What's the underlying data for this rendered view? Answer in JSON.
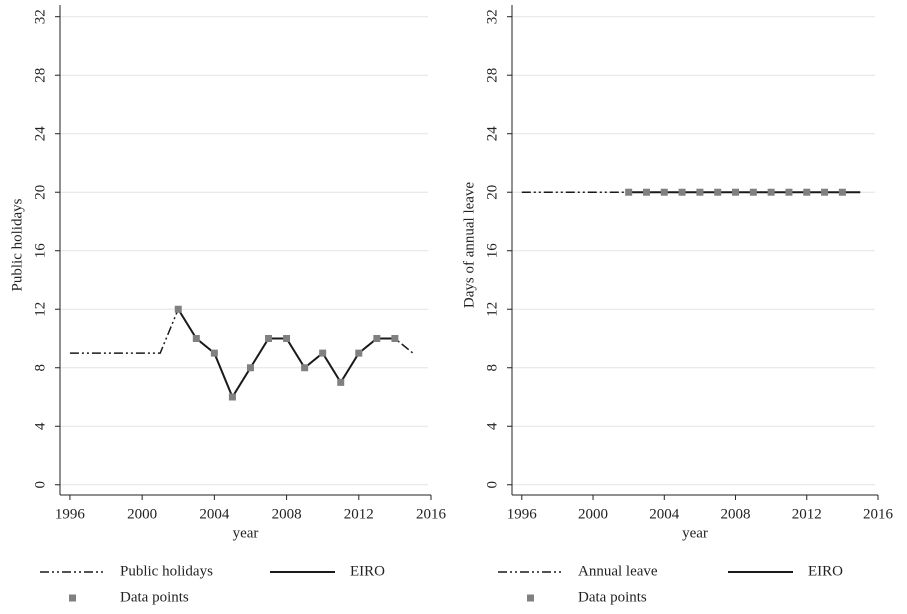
{
  "chart_data": [
    {
      "type": "line",
      "xlabel": "year",
      "ylabel": "Public holidays",
      "x": [
        1996,
        1997,
        1998,
        1999,
        2000,
        2001,
        2002,
        2003,
        2004,
        2005,
        2006,
        2007,
        2008,
        2009,
        2010,
        2011,
        2012,
        2013,
        2014,
        2015
      ],
      "xlim": [
        1995.45,
        2016
      ],
      "xticks": [
        1996,
        2000,
        2004,
        2008,
        2012,
        2016
      ],
      "ylim": [
        -0.7,
        32.8
      ],
      "yticks": [
        0,
        4,
        8,
        12,
        16,
        20,
        24,
        28,
        32
      ],
      "grid": true,
      "series": [
        {
          "name": "Public holidays",
          "color": "#1a1a1a",
          "style": "dash-dot",
          "values": [
            9,
            9,
            9,
            9,
            9,
            9,
            12,
            10,
            9,
            6,
            8,
            10,
            10,
            8,
            9,
            7,
            9,
            10,
            10,
            9
          ]
        },
        {
          "name": "EIRO",
          "color": "#1a1a1a",
          "style": "solid",
          "values": [
            null,
            null,
            null,
            null,
            null,
            null,
            12,
            10,
            9,
            6,
            8,
            10,
            10,
            8,
            9,
            7,
            9,
            10,
            10,
            null
          ]
        },
        {
          "name": "Data points",
          "color": "#808080",
          "style": "markers",
          "values": [
            null,
            null,
            null,
            null,
            null,
            null,
            12,
            10,
            9,
            6,
            8,
            10,
            10,
            8,
            9,
            7,
            9,
            10,
            10,
            null
          ]
        }
      ]
    },
    {
      "type": "line",
      "xlabel": "year",
      "ylabel": "Days of annual leave",
      "x": [
        1996,
        1997,
        1998,
        1999,
        2000,
        2001,
        2002,
        2003,
        2004,
        2005,
        2006,
        2007,
        2008,
        2009,
        2010,
        2011,
        2012,
        2013,
        2014,
        2015
      ],
      "xlim": [
        1995.45,
        2016
      ],
      "xticks": [
        1996,
        2000,
        2004,
        2008,
        2012,
        2016
      ],
      "ylim": [
        -0.7,
        32.8
      ],
      "yticks": [
        0,
        4,
        8,
        12,
        16,
        20,
        24,
        28,
        32
      ],
      "grid": true,
      "series": [
        {
          "name": "Annual leave",
          "color": "#1a1a1a",
          "style": "dash-dot",
          "values": [
            20,
            20,
            20,
            20,
            20,
            20,
            20,
            20,
            20,
            20,
            20,
            20,
            20,
            20,
            20,
            20,
            20,
            20,
            20,
            20
          ]
        },
        {
          "name": "EIRO",
          "color": "#1a1a1a",
          "style": "solid",
          "values": [
            null,
            null,
            null,
            null,
            null,
            null,
            20,
            20,
            20,
            20,
            20,
            20,
            20,
            20,
            20,
            20,
            20,
            20,
            20,
            20
          ]
        },
        {
          "name": "Data points",
          "color": "#808080",
          "style": "markers",
          "values": [
            null,
            null,
            null,
            null,
            null,
            null,
            20,
            20,
            20,
            20,
            20,
            20,
            20,
            20,
            20,
            20,
            20,
            20,
            20,
            null
          ]
        }
      ]
    }
  ]
}
